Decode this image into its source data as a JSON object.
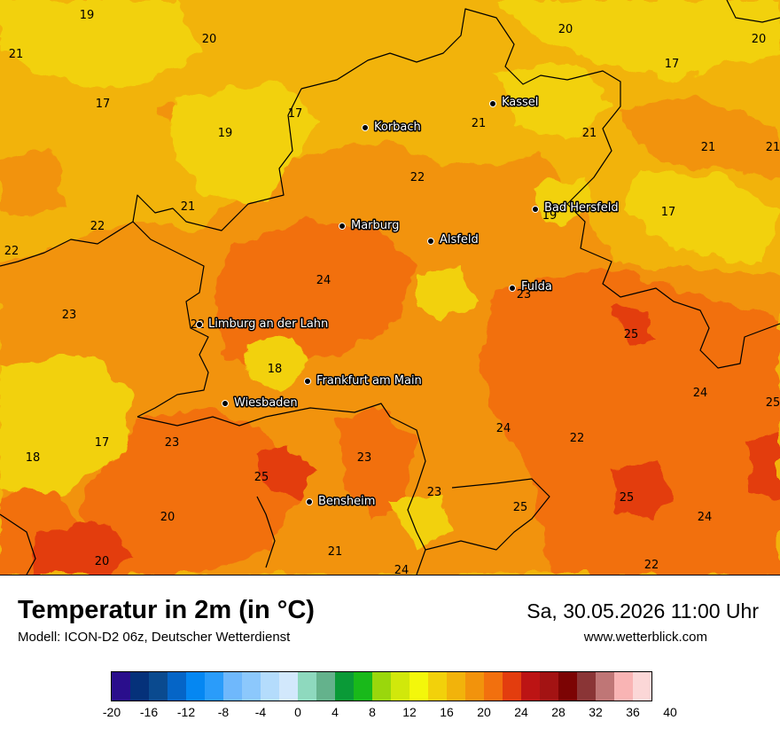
{
  "map": {
    "cities": [
      {
        "name": "Kassel"
      },
      {
        "name": "Korbach"
      },
      {
        "name": "Marburg"
      },
      {
        "name": "Alsfeld"
      },
      {
        "name": "Bad Hersfeld"
      },
      {
        "name": "Fulda"
      },
      {
        "name": "Limburg an der Lahn"
      },
      {
        "name": "Frankfurt am Main"
      },
      {
        "name": "Wiesbaden"
      },
      {
        "name": "Bensheim"
      }
    ],
    "values": [
      "19",
      "20",
      "21",
      "20",
      "17",
      "20",
      "17",
      "17",
      "21",
      "19",
      "21",
      "21",
      "21",
      "22",
      "19",
      "17",
      "21",
      "22",
      "22",
      "24",
      "23",
      "23",
      "25",
      "18",
      "24",
      "25",
      "17",
      "23",
      "24",
      "22",
      "18",
      "23",
      "25",
      "23",
      "25",
      "20",
      "24",
      "25",
      "21",
      "24",
      "22",
      "20",
      "21"
    ]
  },
  "title": "Temperatur in 2m (in °C)",
  "model": "Modell: ICON-D2 06z, Deutscher Wetterdienst",
  "datetime": "Sa, 30.05.2026 11:00 Uhr",
  "website": "www.wetterblick.com",
  "legend": {
    "colors": [
      "#2a0e8c",
      "#05317a",
      "#0a4a8f",
      "#0565c7",
      "#0587f2",
      "#2a9cfa",
      "#6fb8fc",
      "#8cc8fc",
      "#b4dcfc",
      "#d2e8fc",
      "#8ed9be",
      "#64b28c",
      "#0a9a37",
      "#19b91a",
      "#9ad70c",
      "#d1e80b",
      "#f3f70b",
      "#f2d10b",
      "#f2b30b",
      "#f2930c",
      "#f2700e",
      "#e33d0e",
      "#bc1414",
      "#a31313",
      "#7c0404",
      "#8a3536",
      "#bf7676",
      "#f9b4b4",
      "#fbd7d7"
    ],
    "ticks": [
      "-20",
      "-16",
      "-12",
      "-8",
      "-4",
      "0",
      "4",
      "8",
      "12",
      "16",
      "20",
      "24",
      "28",
      "32",
      "36",
      "40"
    ]
  }
}
